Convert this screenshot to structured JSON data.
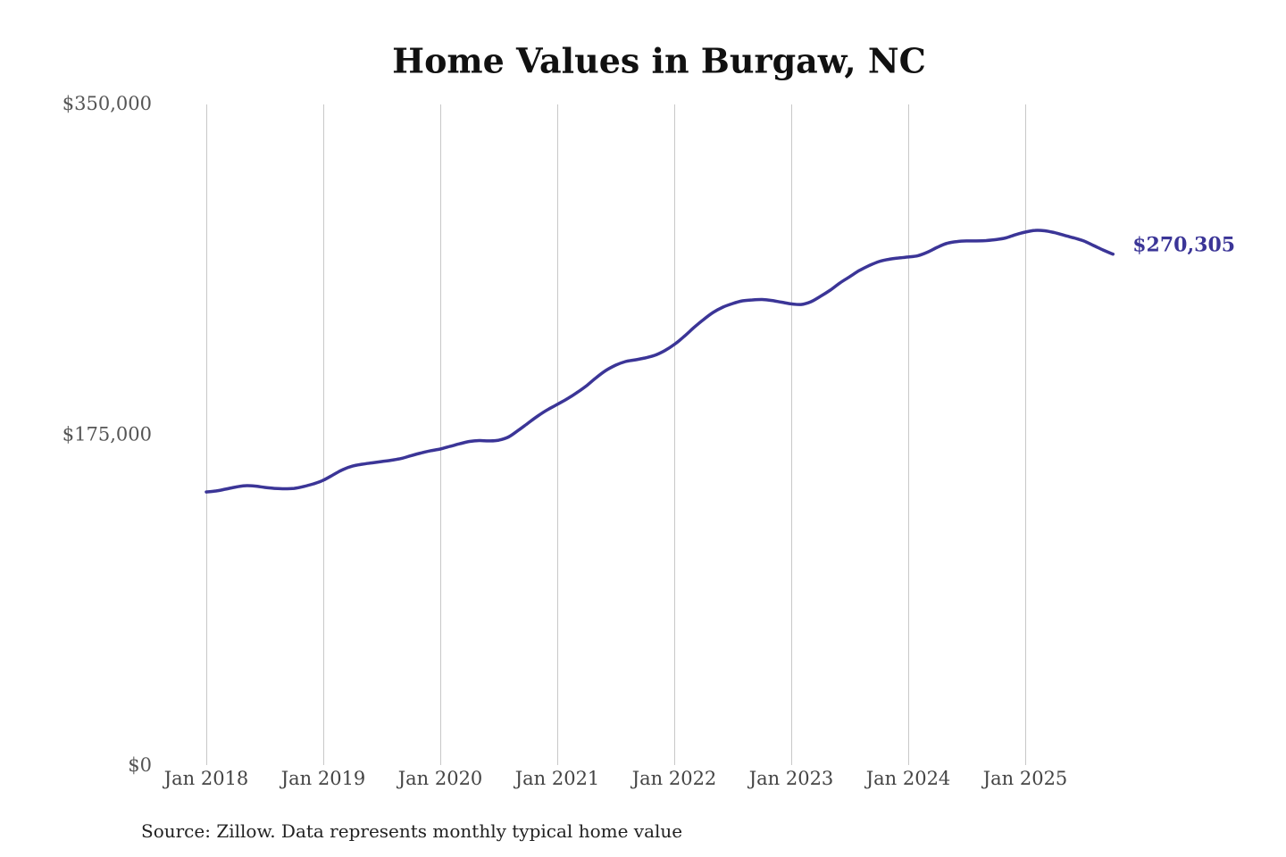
{
  "chart_data": {
    "type": "line",
    "title": "Home Values in Burgaw, NC",
    "x": [
      "2018-01",
      "2018-02",
      "2018-03",
      "2018-04",
      "2018-05",
      "2018-06",
      "2018-07",
      "2018-08",
      "2018-09",
      "2018-10",
      "2018-11",
      "2018-12",
      "2019-01",
      "2019-02",
      "2019-03",
      "2019-04",
      "2019-05",
      "2019-06",
      "2019-07",
      "2019-08",
      "2019-09",
      "2019-10",
      "2019-11",
      "2019-12",
      "2020-01",
      "2020-02",
      "2020-03",
      "2020-04",
      "2020-05",
      "2020-06",
      "2020-07",
      "2020-08",
      "2020-09",
      "2020-10",
      "2020-11",
      "2020-12",
      "2021-01",
      "2021-02",
      "2021-03",
      "2021-04",
      "2021-05",
      "2021-06",
      "2021-07",
      "2021-08",
      "2021-09",
      "2021-10",
      "2021-11",
      "2021-12",
      "2022-01",
      "2022-02",
      "2022-03",
      "2022-04",
      "2022-05",
      "2022-06",
      "2022-07",
      "2022-08",
      "2022-09",
      "2022-10",
      "2022-11",
      "2022-12",
      "2023-01",
      "2023-02",
      "2023-03",
      "2023-04",
      "2023-05",
      "2023-06",
      "2023-07",
      "2023-08",
      "2023-09",
      "2023-10",
      "2023-11",
      "2023-12",
      "2024-01",
      "2024-02",
      "2024-03",
      "2024-04",
      "2024-05",
      "2024-06",
      "2024-07",
      "2024-08",
      "2024-09",
      "2024-10",
      "2024-11",
      "2024-12",
      "2025-01",
      "2025-02",
      "2025-03",
      "2025-04",
      "2025-05",
      "2025-06",
      "2025-07",
      "2025-08",
      "2025-09",
      "2025-10"
    ],
    "series": [
      {
        "color": "#3b3597",
        "values": [
          144500,
          145000,
          146000,
          147100,
          147800,
          147600,
          146900,
          146400,
          146200,
          146400,
          147400,
          148800,
          150700,
          153500,
          156300,
          158200,
          159200,
          159900,
          160600,
          161300,
          162200,
          163700,
          165100,
          166300,
          167200,
          168600,
          170000,
          171200,
          171700,
          171500,
          171900,
          173600,
          177100,
          180900,
          184700,
          188000,
          190800,
          193700,
          197000,
          200700,
          205000,
          208800,
          211600,
          213500,
          214400,
          215400,
          216800,
          219200,
          222500,
          226700,
          231400,
          235700,
          239500,
          242300,
          244200,
          245600,
          246100,
          246300,
          245800,
          244900,
          244000,
          243700,
          245100,
          248000,
          251300,
          255100,
          258400,
          261700,
          264300,
          266400,
          267600,
          268300,
          268800,
          269500,
          271400,
          274000,
          276100,
          277000,
          277300,
          277300,
          277500,
          278000,
          278900,
          280600,
          282000,
          282900,
          282700,
          281700,
          280300,
          278900,
          277300,
          274900,
          272500,
          270305
        ]
      }
    ],
    "annotations": [
      {
        "text": "$270,305",
        "x": "2025-10",
        "y": 270305
      }
    ],
    "ylim": [
      0,
      350000
    ],
    "yticks": [
      0,
      175000,
      350000
    ],
    "ytick_labels": [
      "$0",
      "$175,000",
      "$350,000"
    ],
    "xticks": [
      "2018-01",
      "2019-01",
      "2020-01",
      "2021-01",
      "2022-01",
      "2023-01",
      "2024-01",
      "2025-01"
    ],
    "xtick_labels": [
      "Jan 2018",
      "Jan 2019",
      "Jan 2020",
      "Jan 2021",
      "Jan 2022",
      "Jan 2023",
      "Jan 2024",
      "Jan 2025"
    ],
    "grid": "vertical",
    "grid_color": "#c8c8c8",
    "legend": "none",
    "source": "Source: Zillow. Data represents monthly typical home value"
  }
}
